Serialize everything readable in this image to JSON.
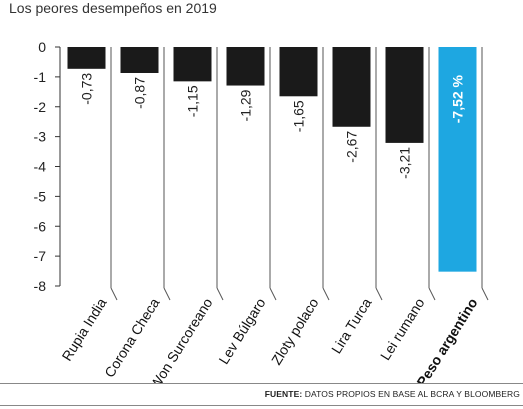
{
  "chart_data": {
    "type": "bar",
    "title": "Los peores desempeños en 2019",
    "categories": [
      "Rupia India",
      "Corona Checa",
      "Won Surcoreano",
      "Lev Búlgaro",
      "Zloty polaco",
      "Lira Turca",
      "Lei rumano",
      "Peso argentino"
    ],
    "values": [
      -0.73,
      -0.87,
      -1.15,
      -1.29,
      -1.65,
      -2.67,
      -3.21,
      -7.52
    ],
    "value_labels": [
      "-0,73",
      "-0,87",
      "-1,15",
      "-1,29",
      "-1,65",
      "-2,67",
      "-3,21",
      "-7,52 %"
    ],
    "y_ticks": [
      0,
      -1,
      -2,
      -3,
      -4,
      -5,
      -6,
      -7,
      -8
    ],
    "y_tick_labels": [
      "0",
      "-1",
      "-2",
      "-3",
      "-4",
      "-5",
      "-6",
      "-7",
      "-8"
    ],
    "ylim": [
      -8,
      0
    ],
    "highlight_index": 7,
    "colors": {
      "bar": "#1a1a1a",
      "highlight": "#1ea7e1",
      "label_dark": "#222222",
      "label_light": "#ffffff"
    },
    "grid": false,
    "legend": "none"
  },
  "source": {
    "label": "FUENTE:",
    "text": " DATOS PROPIOS EN BASE AL BCRA Y BLOOMBERG"
  }
}
